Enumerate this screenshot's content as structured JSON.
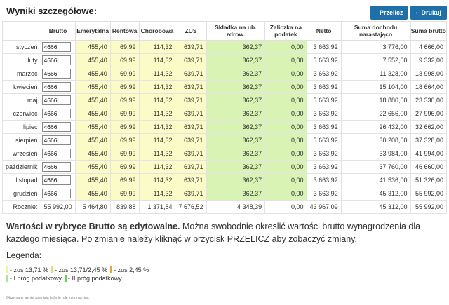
{
  "header": {
    "title": "Wyniki szczegółowe:",
    "recalc_label": "Przelicz",
    "print_label": "Drukuj"
  },
  "table": {
    "columns": [
      "",
      "Brutto",
      "Emerytalna",
      "Rentowa",
      "Chorobowa",
      "ZUS",
      "Składka na ub. zdrow.",
      "Zaliczka na podatek",
      "Netto",
      "Suma dochodu narastająco",
      "Suma brutto"
    ],
    "rows": [
      {
        "month": "styczeń",
        "brutto": "4666",
        "emerytalna": "455,40",
        "rentowa": "69,99",
        "chorobowa": "114,32",
        "zus": "639,71",
        "zdrow": "362,37",
        "zaliczka": "0,00",
        "netto": "3 663,92",
        "suma_doch": "3 776,00",
        "suma_brutto": "4 666,00"
      },
      {
        "month": "luty",
        "brutto": "4666",
        "emerytalna": "455,40",
        "rentowa": "69,99",
        "chorobowa": "114,32",
        "zus": "639,71",
        "zdrow": "362,37",
        "zaliczka": "0,00",
        "netto": "3 663,92",
        "suma_doch": "7 552,00",
        "suma_brutto": "9 332,00"
      },
      {
        "month": "marzec",
        "brutto": "4666",
        "emerytalna": "455,40",
        "rentowa": "69,99",
        "chorobowa": "114,32",
        "zus": "639,71",
        "zdrow": "362,37",
        "zaliczka": "0,00",
        "netto": "3 663,92",
        "suma_doch": "11 328,00",
        "suma_brutto": "13 998,00"
      },
      {
        "month": "kwiecień",
        "brutto": "4666",
        "emerytalna": "455,40",
        "rentowa": "69,99",
        "chorobowa": "114,32",
        "zus": "639,71",
        "zdrow": "362,37",
        "zaliczka": "0,00",
        "netto": "3 663,92",
        "suma_doch": "15 104,00",
        "suma_brutto": "18 664,00"
      },
      {
        "month": "maj",
        "brutto": "4666",
        "emerytalna": "455,40",
        "rentowa": "69,99",
        "chorobowa": "114,32",
        "zus": "639,71",
        "zdrow": "362,37",
        "zaliczka": "0,00",
        "netto": "3 663,92",
        "suma_doch": "18 880,00",
        "suma_brutto": "23 330,00"
      },
      {
        "month": "czerwiec",
        "brutto": "4666",
        "emerytalna": "455,40",
        "rentowa": "69,99",
        "chorobowa": "114,32",
        "zus": "639,71",
        "zdrow": "362,37",
        "zaliczka": "0,00",
        "netto": "3 663,92",
        "suma_doch": "22 656,00",
        "suma_brutto": "27 996,00"
      },
      {
        "month": "lipiec",
        "brutto": "4666",
        "emerytalna": "455,40",
        "rentowa": "69,99",
        "chorobowa": "114,32",
        "zus": "639,71",
        "zdrow": "362,37",
        "zaliczka": "0,00",
        "netto": "3 663,92",
        "suma_doch": "26 432,00",
        "suma_brutto": "32 662,00"
      },
      {
        "month": "sierpień",
        "brutto": "4666",
        "emerytalna": "455,40",
        "rentowa": "69,99",
        "chorobowa": "114,32",
        "zus": "639,71",
        "zdrow": "362,37",
        "zaliczka": "0,00",
        "netto": "3 663,92",
        "suma_doch": "30 208,00",
        "suma_brutto": "37 328,00"
      },
      {
        "month": "wrzesień",
        "brutto": "4666",
        "emerytalna": "455,40",
        "rentowa": "69,99",
        "chorobowa": "114,32",
        "zus": "639,71",
        "zdrow": "362,37",
        "zaliczka": "0,00",
        "netto": "3 663,92",
        "suma_doch": "33 984,00",
        "suma_brutto": "41 994,00"
      },
      {
        "month": "październik",
        "brutto": "4666",
        "emerytalna": "455,40",
        "rentowa": "69,99",
        "chorobowa": "114,32",
        "zus": "639,71",
        "zdrow": "362,37",
        "zaliczka": "0,00",
        "netto": "3 663,92",
        "suma_doch": "37 760,00",
        "suma_brutto": "46 660,00"
      },
      {
        "month": "listopad",
        "brutto": "4666",
        "emerytalna": "455,40",
        "rentowa": "69,99",
        "chorobowa": "114,32",
        "zus": "639,71",
        "zdrow": "362,37",
        "zaliczka": "0,00",
        "netto": "3 663,92",
        "suma_doch": "41 536,00",
        "suma_brutto": "51 326,00"
      },
      {
        "month": "grudzień",
        "brutto": "4666",
        "emerytalna": "455,40",
        "rentowa": "69,99",
        "chorobowa": "114,32",
        "zus": "639,71",
        "zdrow": "362,37",
        "zaliczka": "0,00",
        "netto": "3 663,92",
        "suma_doch": "45 312,00",
        "suma_brutto": "55 992,00"
      }
    ],
    "total": {
      "label": "Rocznie:",
      "brutto": "55 992,00",
      "emerytalna": "5 464,80",
      "rentowa": "839,88",
      "chorobowa": "1 371,84",
      "zus": "7 676,52",
      "zdrow": "4 348,39",
      "zaliczka": "0,00",
      "netto": "43 967,09",
      "suma_doch": "45 312,00",
      "suma_brutto": "55 992,00"
    }
  },
  "note": {
    "bold": "Wartości w rybryce Brutto są edytowalne.",
    "rest": " Można swobodnie okreslić wartości brutto wynagrodzenia dla każdego miesiąca. Po zmianie należy kliknąć w przycisk PRZELICZ aby zobaczyć zmiany."
  },
  "legend": {
    "title": "Legenda:",
    "items_row1": [
      "- zus 13,71 %",
      "- zus 13,71/2,45 %",
      "- zus 2,45 %"
    ],
    "items_row2": [
      "- I próg podatkowy",
      "- II próg podatkowy"
    ]
  },
  "footer": "Otrzymane wyniki spełniają jedynie rolę informacyjną.",
  "colors": {
    "accent": "#1f6fa8",
    "yellow": "#fbfbc8",
    "green": "#d8f3b4"
  }
}
